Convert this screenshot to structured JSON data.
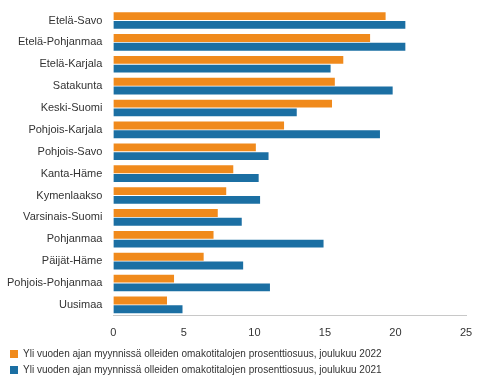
{
  "chart_data": {
    "type": "bar",
    "orientation": "horizontal",
    "categories": [
      "Etelä-Savo",
      "Etelä-Pohjanmaa",
      "Etelä-Karjala",
      "Satakunta",
      "Keski-Suomi",
      "Pohjois-Karjala",
      "Pohjois-Savo",
      "Kanta-Häme",
      "Kymenlaakso",
      "Varsinais-Suomi",
      "Pohjanmaa",
      "Päijät-Häme",
      "Pohjois-Pohjanmaa",
      "Uusimaa"
    ],
    "series": [
      {
        "name": "Yli vuoden ajan myynnissä olleiden omakotitalojen prosenttiosuus, joulukuu 2022",
        "color": "#f08a1c",
        "values": [
          19.3,
          18.2,
          16.3,
          15.7,
          15.5,
          12.1,
          10.1,
          8.5,
          8.0,
          7.4,
          7.1,
          6.4,
          4.3,
          3.8
        ]
      },
      {
        "name": "Yli vuoden ajan myynnissä olleiden omakotitalojen prosenttiosuus, joulukuu 2021",
        "color": "#1b6fa3",
        "values": [
          20.7,
          20.7,
          15.4,
          19.8,
          13.0,
          18.9,
          11.0,
          10.3,
          10.4,
          9.1,
          14.9,
          9.2,
          11.1,
          4.9
        ]
      }
    ],
    "xlim": [
      0,
      25
    ],
    "xticks": [
      0,
      5,
      10,
      15,
      20,
      25
    ],
    "grid": false,
    "legend": "bottom"
  }
}
